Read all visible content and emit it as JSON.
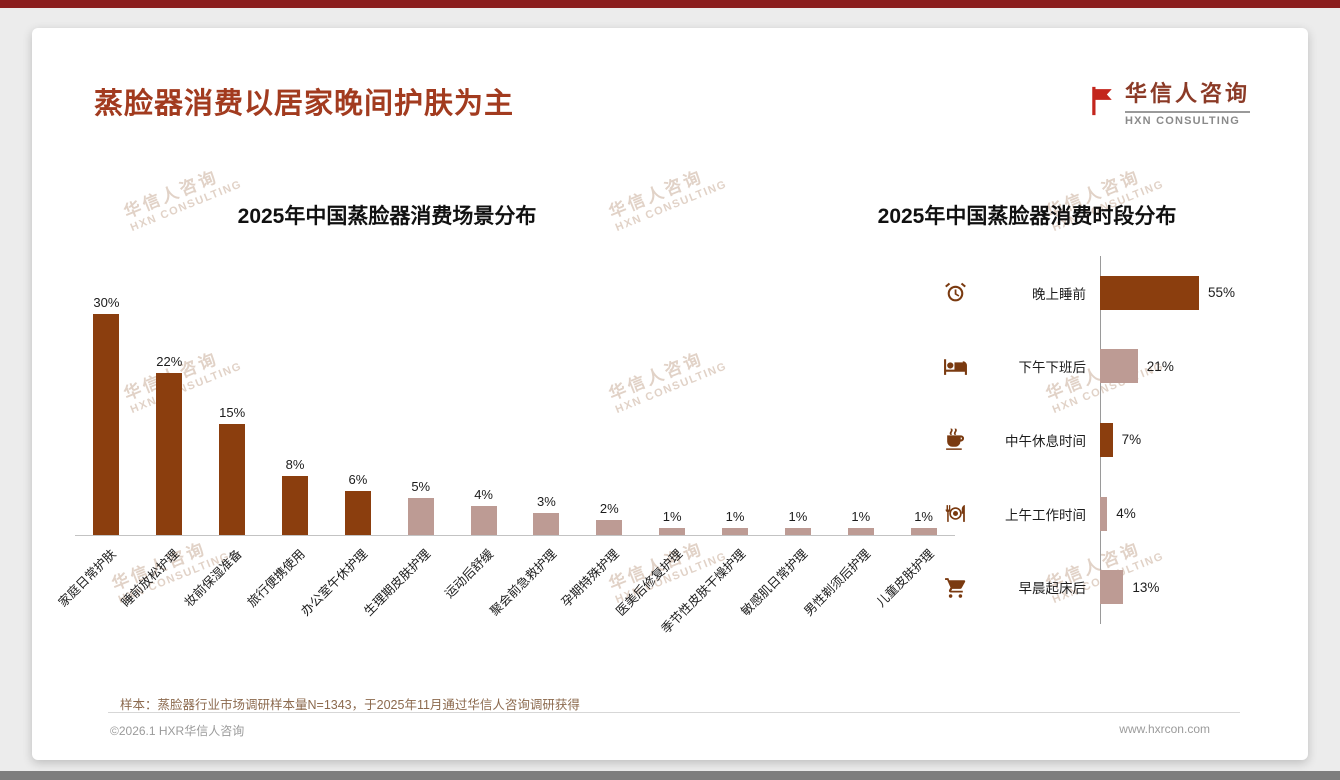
{
  "header": {
    "title": "蒸脸器消费以居家晚间护肤为主",
    "logo_name": "华信人咨询",
    "logo_sub": "HXN CONSULTING"
  },
  "watermark": {
    "line1": "华信人咨询",
    "line2": "HXN CONSULTING"
  },
  "colors": {
    "accent_red": "#A23B1F",
    "top_strip": "#8B1E1E",
    "bar_dark": "#8B3E0E",
    "bar_light": "#BD9B94",
    "icon_brown": "#7A3A10"
  },
  "chart_data": [
    {
      "type": "bar",
      "title": "2025年中国蒸脸器消费场景分布",
      "categories": [
        "家庭日常护肤",
        "睡前放松护理",
        "妆前保湿准备",
        "旅行便携使用",
        "办公室午休护理",
        "生理期皮肤护理",
        "运动后舒缓",
        "聚会前急救护理",
        "孕期特殊护理",
        "医美后修复护理",
        "季节性皮肤干燥护理",
        "敏感肌日常护理",
        "男性剃须后护理",
        "儿童皮肤护理"
      ],
      "values": [
        30,
        22,
        15,
        8,
        6,
        5,
        4,
        3,
        2,
        1,
        1,
        1,
        1,
        1
      ],
      "bar_colors": [
        "dark",
        "dark",
        "dark",
        "dark",
        "dark",
        "light",
        "light",
        "light",
        "light",
        "light",
        "light",
        "light",
        "light",
        "light"
      ],
      "unit": "%",
      "ylim": [
        0,
        33
      ],
      "grid": false,
      "value_labels": "above-bars"
    },
    {
      "type": "bar-horizontal",
      "title": "2025年中国蒸脸器消费时段分布",
      "categories": [
        "晚上睡前",
        "下午下班后",
        "中午休息时间",
        "上午工作时间",
        "早晨起床后"
      ],
      "values": [
        55,
        21,
        7,
        4,
        13
      ],
      "bar_colors": [
        "dark",
        "light",
        "dark",
        "light",
        "light"
      ],
      "icons": [
        "alarm-clock",
        "bed",
        "coffee",
        "dining",
        "cart"
      ],
      "unit": "%",
      "xlim": [
        0,
        60
      ],
      "grid": false,
      "value_labels": "right-of-bars"
    }
  ],
  "footnote": {
    "text": "样本：蒸脸器行业市场调研样本量N=1343，于2025年11月通过华信人咨询调研获得"
  },
  "footer": {
    "copyright": "©2026.1 HXR华信人咨询",
    "website": "www.hxrcon.com"
  }
}
